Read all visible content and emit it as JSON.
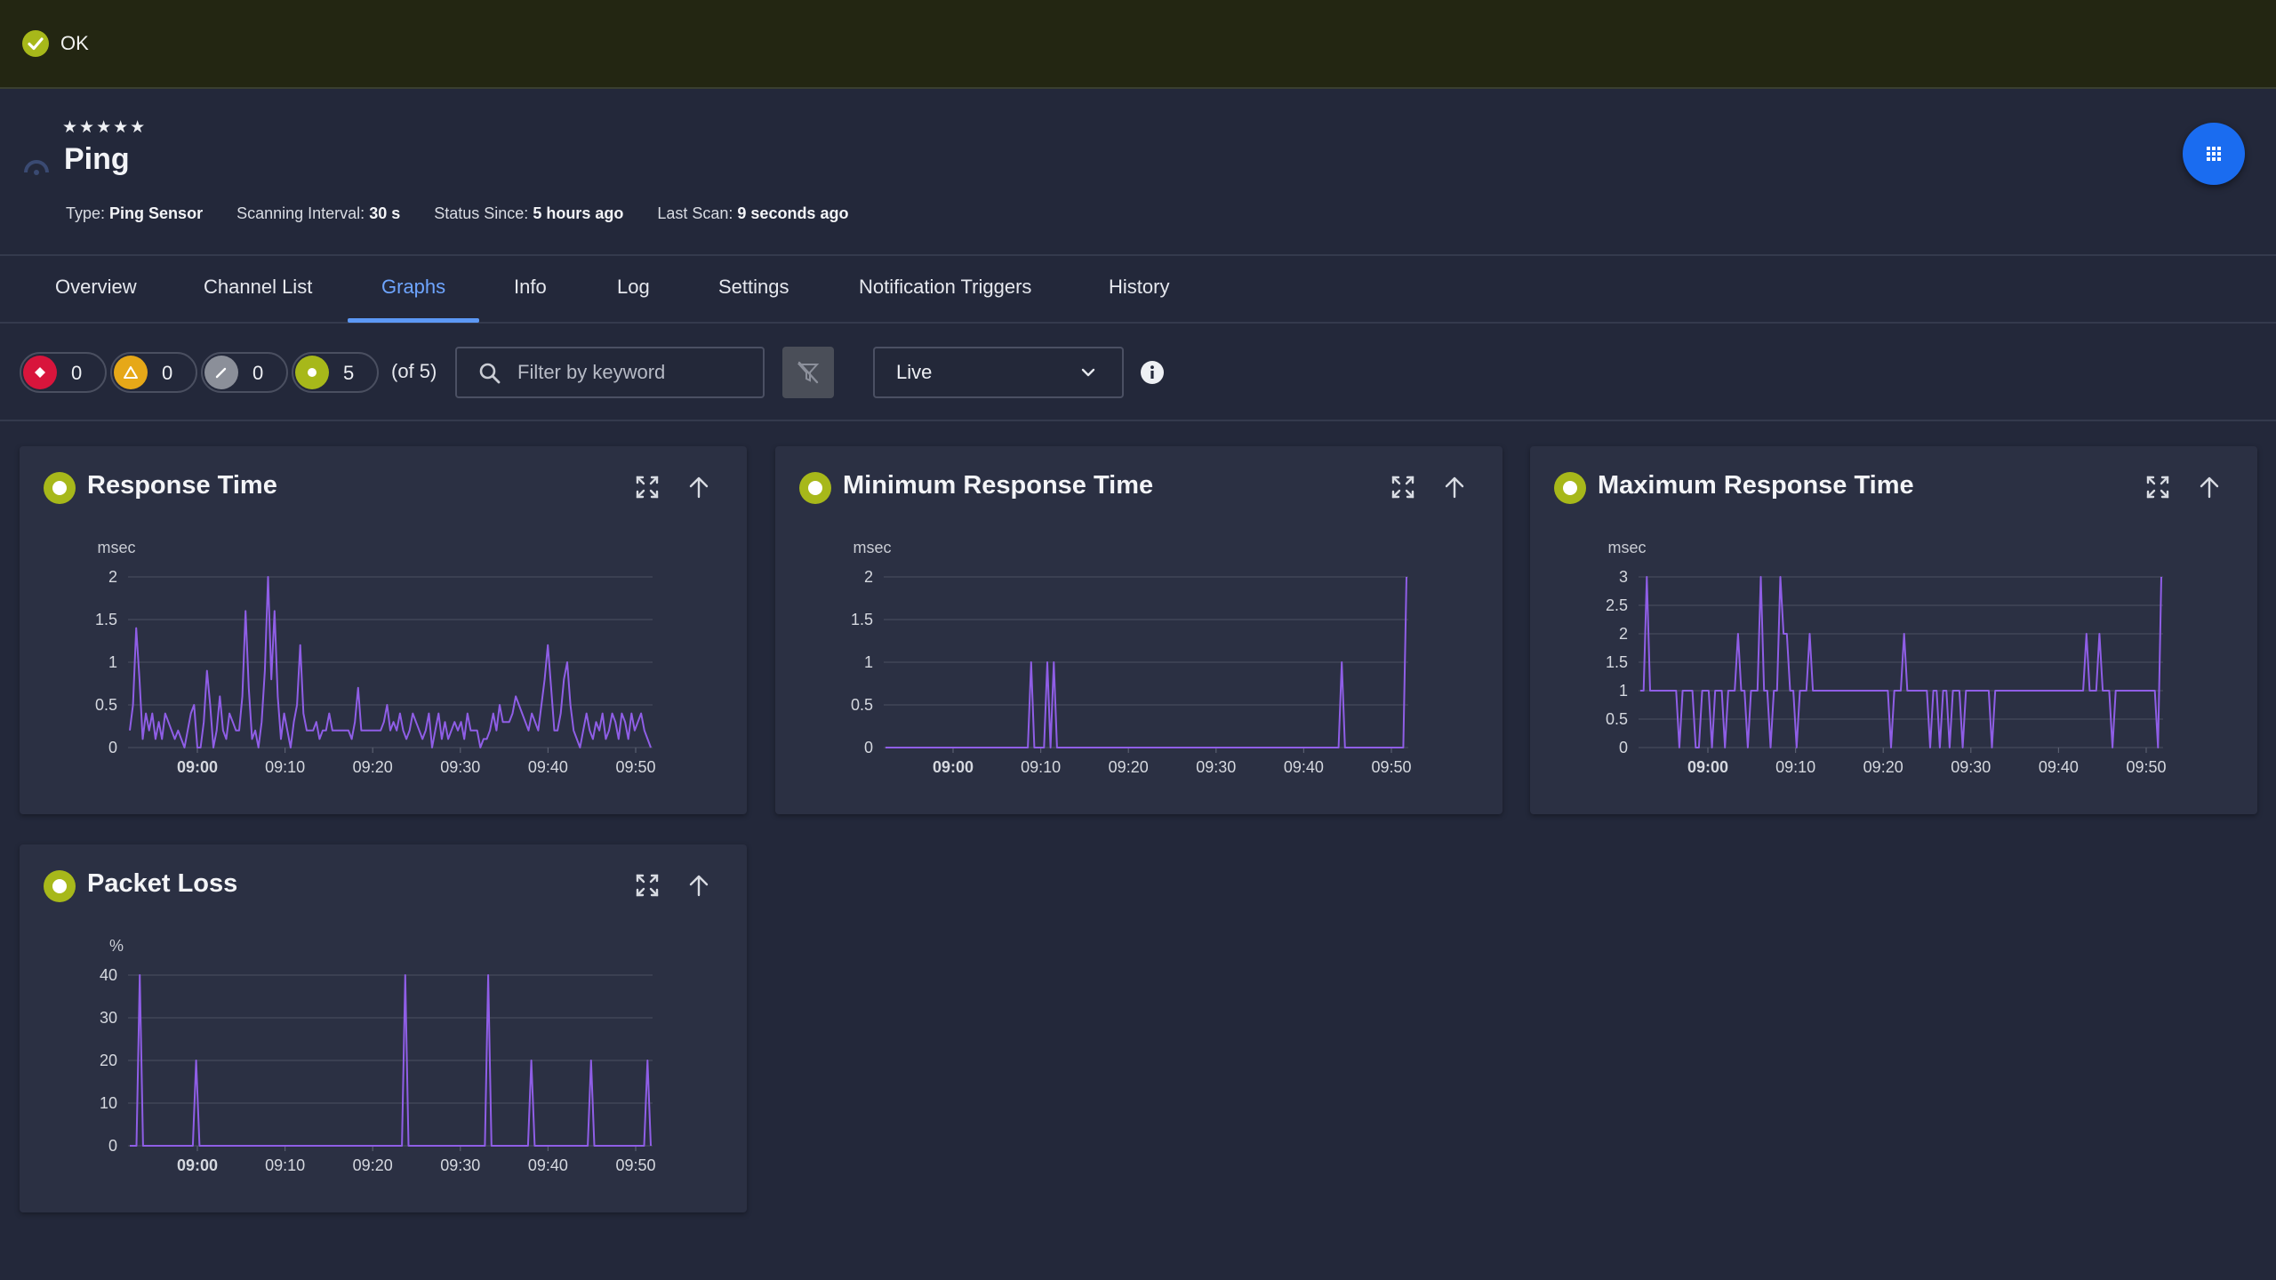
{
  "status": {
    "label": "OK",
    "color": "#a7b81a"
  },
  "sensor": {
    "stars": "★★★★★",
    "name": "Ping",
    "meta": {
      "type_label": "Type:",
      "type_value": "Ping Sensor",
      "interval_label": "Scanning Interval:",
      "interval_value": "30 s",
      "since_label": "Status Since:",
      "since_value": "5 hours ago",
      "scan_label": "Last Scan:",
      "scan_value": "9 seconds ago"
    }
  },
  "icons": {
    "status": "check-circle-icon",
    "fab": "apps-grid-icon",
    "search": "search-icon",
    "filter_clear": "filter-off-icon",
    "chevron": "chevron-down-icon",
    "info": "info-icon",
    "expand": "expand-icon",
    "up": "arrow-up-icon"
  },
  "tabs": [
    {
      "label": "Overview"
    },
    {
      "label": "Channel List"
    },
    {
      "label": "Graphs",
      "active": true
    },
    {
      "label": "Info"
    },
    {
      "label": "Log"
    },
    {
      "label": "Settings"
    },
    {
      "label": "Notification Triggers"
    },
    {
      "label": "History"
    }
  ],
  "toolbar": {
    "counts": [
      {
        "status": "down",
        "count": "0",
        "color": "#d8153c"
      },
      {
        "status": "warning",
        "count": "0",
        "color": "#e6a818"
      },
      {
        "status": "paused",
        "count": "0",
        "color": "#8b8f99"
      },
      {
        "status": "up",
        "count": "5",
        "color": "#a7b81a"
      }
    ],
    "of_total": "(of 5)",
    "search_placeholder": "Filter by keyword",
    "time_range": "Live"
  },
  "colors": {
    "accent": "#1a6cf0",
    "line": "#8f5ee6",
    "up": "#a7b81a"
  },
  "chart_data": [
    {
      "type": "line",
      "title": "Response Time",
      "ylabel": "msec",
      "ylim": [
        0,
        2
      ],
      "yticks": [
        0,
        0.5,
        1,
        1.5,
        2
      ],
      "xticks": [
        "09:00",
        "09:10",
        "09:20",
        "09:30",
        "09:40",
        "09:50"
      ],
      "x_bold": "09:00",
      "series": [
        {
          "values": [
            0.2,
            0.5,
            1.4,
            0.8,
            0.1,
            0.4,
            0.2,
            0.4,
            0.1,
            0.3,
            0.1,
            0.4,
            0.3,
            0.2,
            0.1,
            0.2,
            0.1,
            0,
            0.2,
            0.4,
            0.5,
            0,
            0,
            0.3,
            0.9,
            0.5,
            0,
            0.2,
            0.6,
            0.2,
            0.1,
            0.4,
            0.3,
            0.2,
            0.2,
            0.6,
            1.6,
            0.7,
            0.1,
            0.2,
            0,
            0.3,
            0.9,
            2,
            0.8,
            1.6,
            0.6,
            0.1,
            0.4,
            0.2,
            0,
            0.3,
            0.5,
            1.2,
            0.4,
            0.2,
            0.2,
            0.2,
            0.3,
            0.1,
            0.2,
            0.2,
            0.4,
            0.2,
            0.2,
            0.2,
            0.2,
            0.2,
            0.2,
            0.1,
            0.3,
            0.7,
            0.2,
            0.2,
            0.2,
            0.2,
            0.2,
            0.2,
            0.2,
            0.3,
            0.5,
            0.2,
            0.3,
            0.2,
            0.4,
            0.2,
            0.1,
            0.2,
            0.4,
            0.3,
            0.2,
            0.1,
            0.2,
            0.4,
            0,
            0.2,
            0.4,
            0.1,
            0.3,
            0.1,
            0.2,
            0.3,
            0.2,
            0.3,
            0.1,
            0.4,
            0.2,
            0.2,
            0.2,
            0,
            0.1,
            0.1,
            0.2,
            0.4,
            0.2,
            0.5,
            0.3,
            0.3,
            0.3,
            0.4,
            0.6,
            0.5,
            0.4,
            0.3,
            0.2,
            0.4,
            0.3,
            0.2,
            0.5,
            0.8,
            1.2,
            0.7,
            0.2,
            0.2,
            0.4,
            0.8,
            1,
            0.5,
            0.2,
            0.1,
            0,
            0.2,
            0.4,
            0.2,
            0.1,
            0.3,
            0.2,
            0.4,
            0.1,
            0.2,
            0.4,
            0.3,
            0.1,
            0.4,
            0.3,
            0.1,
            0.4,
            0.2,
            0.3,
            0.4,
            0.2,
            0.1,
            0
          ]
        }
      ]
    },
    {
      "type": "line",
      "title": "Minimum Response Time",
      "ylabel": "msec",
      "ylim": [
        0,
        2
      ],
      "yticks": [
        0,
        0.5,
        1,
        1.5,
        2
      ],
      "xticks": [
        "09:00",
        "09:10",
        "09:20",
        "09:30",
        "09:40",
        "09:50"
      ],
      "x_bold": "09:00",
      "series": [
        {
          "values": [
            0,
            0,
            0,
            0,
            0,
            0,
            0,
            0,
            0,
            0,
            0,
            0,
            0,
            0,
            0,
            0,
            0,
            0,
            0,
            0,
            0,
            0,
            0,
            0,
            0,
            0,
            0,
            0,
            0,
            0,
            0,
            0,
            0,
            0,
            0,
            0,
            0,
            0,
            0,
            0,
            0,
            0,
            0,
            0,
            0,
            1,
            0,
            0,
            0,
            0,
            1,
            0,
            1,
            0,
            0,
            0,
            0,
            0,
            0,
            0,
            0,
            0,
            0,
            0,
            0,
            0,
            0,
            0,
            0,
            0,
            0,
            0,
            0,
            0,
            0,
            0,
            0,
            0,
            0,
            0,
            0,
            0,
            0,
            0,
            0,
            0,
            0,
            0,
            0,
            0,
            0,
            0,
            0,
            0,
            0,
            0,
            0,
            0,
            0,
            0,
            0,
            0,
            0,
            0,
            0,
            0,
            0,
            0,
            0,
            0,
            0,
            0,
            0,
            0,
            0,
            0,
            0,
            0,
            0,
            0,
            0,
            0,
            0,
            0,
            0,
            0,
            0,
            0,
            0,
            0,
            0,
            0,
            0,
            0,
            0,
            0,
            0,
            0,
            0,
            0,
            0,
            1,
            0,
            0,
            0,
            0,
            0,
            0,
            0,
            0,
            0,
            0,
            0,
            0,
            0,
            0,
            0,
            0,
            0,
            0,
            0,
            2
          ]
        }
      ]
    },
    {
      "type": "line",
      "title": "Maximum Response Time",
      "ylabel": "msec",
      "ylim": [
        0,
        3
      ],
      "yticks": [
        0,
        0.5,
        1,
        1.5,
        2,
        2.5,
        3
      ],
      "xticks": [
        "09:00",
        "09:10",
        "09:20",
        "09:30",
        "09:40",
        "09:50"
      ],
      "x_bold": "09:00",
      "series": [
        {
          "values": [
            1,
            1,
            3,
            1,
            1,
            1,
            1,
            1,
            1,
            1,
            1,
            1,
            0,
            1,
            1,
            1,
            1,
            0,
            0,
            1,
            1,
            1,
            0,
            1,
            1,
            1,
            0,
            1,
            1,
            1,
            2,
            1,
            1,
            0,
            1,
            1,
            1,
            3,
            1,
            1,
            0,
            1,
            1,
            3,
            2,
            2,
            1,
            1,
            0,
            1,
            1,
            1,
            2,
            1,
            1,
            1,
            1,
            1,
            1,
            1,
            1,
            1,
            1,
            1,
            1,
            1,
            1,
            1,
            1,
            1,
            1,
            1,
            1,
            1,
            1,
            1,
            1,
            0,
            1,
            1,
            1,
            2,
            1,
            1,
            1,
            1,
            1,
            1,
            1,
            0,
            1,
            1,
            0,
            1,
            1,
            0,
            1,
            1,
            1,
            0,
            1,
            1,
            1,
            1,
            1,
            1,
            1,
            1,
            0,
            1,
            1,
            1,
            1,
            1,
            1,
            1,
            1,
            1,
            1,
            1,
            1,
            1,
            1,
            1,
            1,
            1,
            1,
            1,
            1,
            1,
            1,
            1,
            1,
            1,
            1,
            1,
            1,
            2,
            1,
            1,
            1,
            2,
            1,
            1,
            1,
            0,
            1,
            1,
            1,
            1,
            1,
            1,
            1,
            1,
            1,
            1,
            1,
            1,
            1,
            0,
            3
          ]
        }
      ]
    },
    {
      "type": "line",
      "title": "Packet Loss",
      "ylabel": "%",
      "ylim": [
        0,
        40
      ],
      "yticks": [
        0,
        10,
        20,
        30,
        40
      ],
      "xticks": [
        "09:00",
        "09:10",
        "09:20",
        "09:30",
        "09:40",
        "09:50"
      ],
      "x_bold": "09:00",
      "series": [
        {
          "values": [
            0,
            0,
            0,
            40,
            0,
            0,
            0,
            0,
            0,
            0,
            0,
            0,
            0,
            0,
            0,
            0,
            0,
            0,
            0,
            0,
            20,
            0,
            0,
            0,
            0,
            0,
            0,
            0,
            0,
            0,
            0,
            0,
            0,
            0,
            0,
            0,
            0,
            0,
            0,
            0,
            0,
            0,
            0,
            0,
            0,
            0,
            0,
            0,
            0,
            0,
            0,
            0,
            0,
            0,
            0,
            0,
            0,
            0,
            0,
            0,
            0,
            0,
            0,
            0,
            0,
            0,
            0,
            0,
            0,
            0,
            0,
            0,
            0,
            0,
            0,
            0,
            0,
            0,
            0,
            0,
            0,
            0,
            0,
            40,
            0,
            0,
            0,
            0,
            0,
            0,
            0,
            0,
            0,
            0,
            0,
            0,
            0,
            0,
            0,
            0,
            0,
            0,
            0,
            0,
            0,
            0,
            0,
            0,
            40,
            0,
            0,
            0,
            0,
            0,
            0,
            0,
            0,
            0,
            0,
            0,
            0,
            20,
            0,
            0,
            0,
            0,
            0,
            0,
            0,
            0,
            0,
            0,
            0,
            0,
            0,
            0,
            0,
            0,
            0,
            20,
            0,
            0,
            0,
            0,
            0,
            0,
            0,
            0,
            0,
            0,
            0,
            0,
            0,
            0,
            0,
            0,
            20,
            0
          ]
        }
      ]
    }
  ]
}
